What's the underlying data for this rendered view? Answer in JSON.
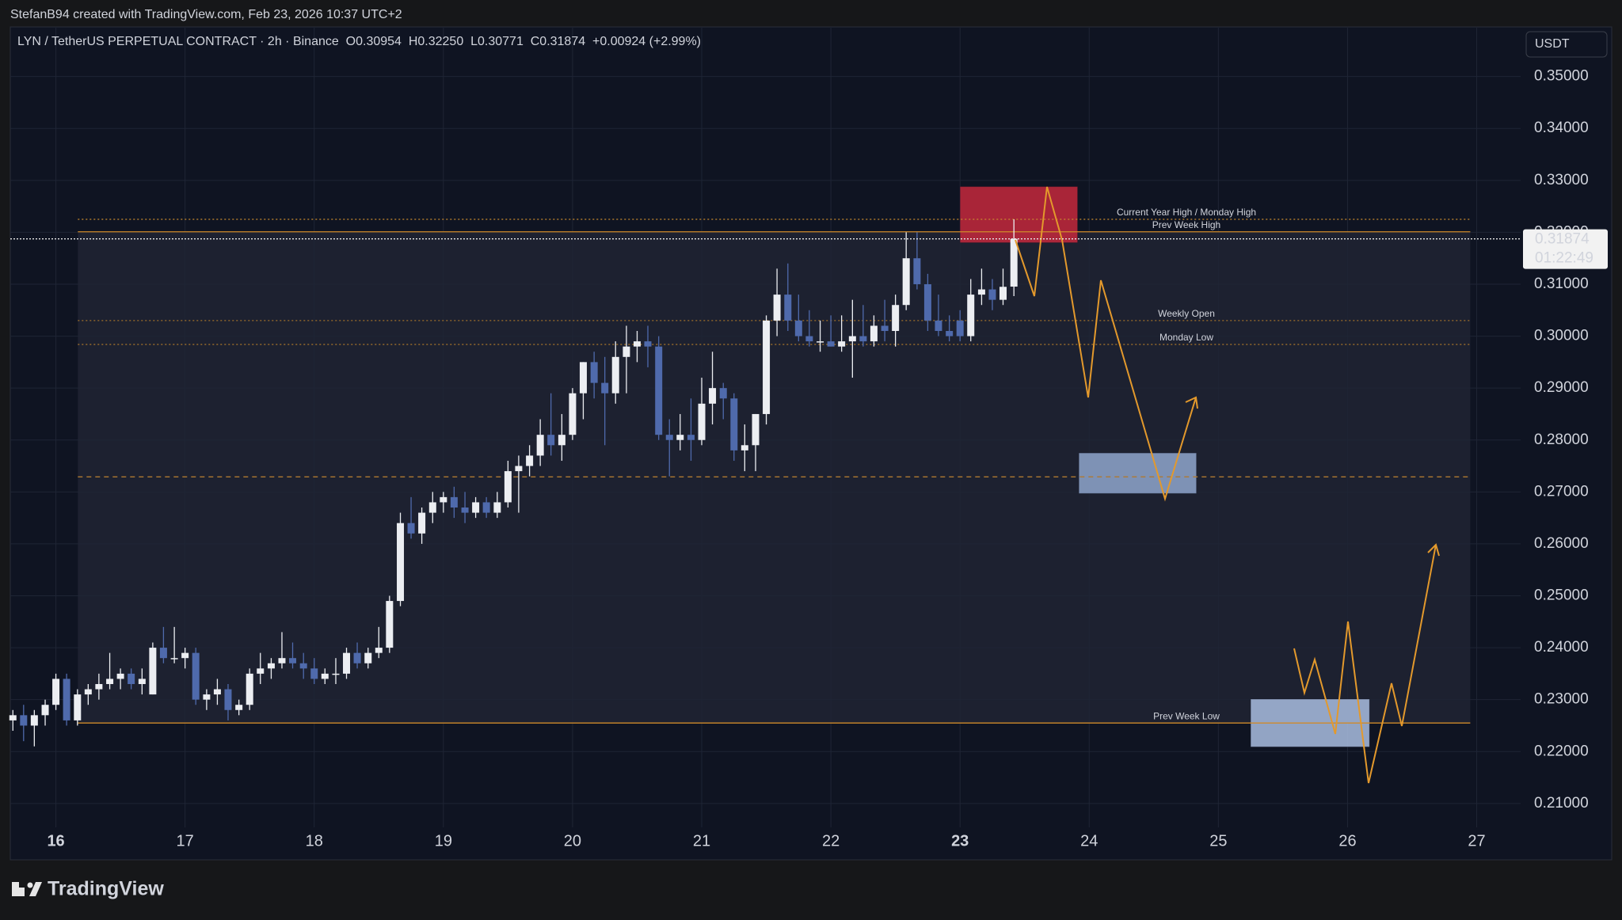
{
  "header": {
    "credit": "StefanB94 created with TradingView.com, Feb 23, 2026 10:37 UTC+2",
    "currency_button": "USDT",
    "brand": "TradingView"
  },
  "chart_data": {
    "type": "candlestick",
    "title": "LYN / TetherUS PERPETUAL CONTRACT · 2h · Binance  O0.30954  H0.32250  L0.30771  C0.31874  +0.00924 (+2.99%)",
    "x": [
      15.667,
      15.75,
      15.833,
      15.917,
      16,
      16.083,
      16.167,
      16.25,
      16.333,
      16.417,
      16.5,
      16.583,
      16.667,
      16.75,
      16.833,
      16.917,
      17,
      17.083,
      17.167,
      17.25,
      17.333,
      17.417,
      17.5,
      17.583,
      17.667,
      17.75,
      17.833,
      17.917,
      18,
      18.083,
      18.167,
      18.25,
      18.333,
      18.417,
      18.5,
      18.583,
      18.667,
      18.75,
      18.833,
      18.917,
      19,
      19.083,
      19.167,
      19.25,
      19.333,
      19.417,
      19.5,
      19.583,
      19.667,
      19.75,
      19.833,
      19.917,
      20,
      20.083,
      20.167,
      20.25,
      20.333,
      20.417,
      20.5,
      20.583,
      20.667,
      20.75,
      20.833,
      20.917,
      21,
      21.083,
      21.167,
      21.25,
      21.333,
      21.417,
      21.5,
      21.583,
      21.667,
      21.75,
      21.833,
      21.917,
      22,
      22.083,
      22.167,
      22.25,
      22.333,
      22.417,
      22.5,
      22.583,
      22.667,
      22.75,
      22.833,
      22.917,
      23,
      23.083,
      23.167,
      23.25,
      23.333,
      23.417
    ],
    "open": [
      0.226,
      0.227,
      0.225,
      0.227,
      0.229,
      0.234,
      0.226,
      0.231,
      0.232,
      0.233,
      0.234,
      0.235,
      0.233,
      0.231,
      0.24,
      0.238,
      0.238,
      0.239,
      0.23,
      0.231,
      0.232,
      0.228,
      0.229,
      0.235,
      0.236,
      0.237,
      0.238,
      0.237,
      0.236,
      0.234,
      0.235,
      0.235,
      0.239,
      0.237,
      0.239,
      0.24,
      0.249,
      0.264,
      0.262,
      0.266,
      0.268,
      0.269,
      0.267,
      0.266,
      0.268,
      0.266,
      0.268,
      0.274,
      0.275,
      0.277,
      0.281,
      0.279,
      0.281,
      0.289,
      0.295,
      0.291,
      0.289,
      0.296,
      0.298,
      0.299,
      0.298,
      0.281,
      0.28,
      0.281,
      0.28,
      0.287,
      0.29,
      0.288,
      0.278,
      0.279,
      0.285,
      0.303,
      0.308,
      0.303,
      0.3,
      0.299,
      0.299,
      0.298,
      0.299,
      0.3,
      0.299,
      0.302,
      0.301,
      0.306,
      0.315,
      0.31,
      0.303,
      0.301,
      0.303,
      0.3,
      0.308,
      0.309,
      0.307,
      0.30954
    ],
    "high": [
      0.228,
      0.229,
      0.228,
      0.23,
      0.235,
      0.235,
      0.232,
      0.233,
      0.235,
      0.239,
      0.236,
      0.236,
      0.236,
      0.241,
      0.244,
      0.244,
      0.24,
      0.24,
      0.232,
      0.234,
      0.233,
      0.23,
      0.236,
      0.239,
      0.238,
      0.243,
      0.241,
      0.239,
      0.238,
      0.236,
      0.238,
      0.24,
      0.241,
      0.24,
      0.244,
      0.25,
      0.266,
      0.269,
      0.267,
      0.27,
      0.27,
      0.271,
      0.27,
      0.269,
      0.269,
      0.27,
      0.276,
      0.277,
      0.279,
      0.284,
      0.289,
      0.285,
      0.29,
      0.295,
      0.297,
      0.296,
      0.299,
      0.302,
      0.301,
      0.302,
      0.3,
      0.284,
      0.285,
      0.288,
      0.292,
      0.297,
      0.291,
      0.289,
      0.283,
      0.285,
      0.304,
      0.313,
      0.314,
      0.308,
      0.305,
      0.303,
      0.304,
      0.304,
      0.307,
      0.306,
      0.304,
      0.307,
      0.308,
      0.32,
      0.32,
      0.312,
      0.308,
      0.304,
      0.305,
      0.311,
      0.313,
      0.311,
      0.313,
      0.3225
    ],
    "low": [
      0.224,
      0.222,
      0.221,
      0.225,
      0.228,
      0.225,
      0.225,
      0.229,
      0.23,
      0.232,
      0.232,
      0.232,
      0.231,
      0.231,
      0.237,
      0.237,
      0.236,
      0.229,
      0.228,
      0.229,
      0.226,
      0.227,
      0.228,
      0.233,
      0.234,
      0.236,
      0.236,
      0.234,
      0.233,
      0.233,
      0.233,
      0.234,
      0.236,
      0.236,
      0.238,
      0.239,
      0.248,
      0.261,
      0.26,
      0.264,
      0.266,
      0.265,
      0.264,
      0.265,
      0.265,
      0.265,
      0.267,
      0.266,
      0.273,
      0.275,
      0.277,
      0.276,
      0.28,
      0.284,
      0.288,
      0.279,
      0.287,
      0.289,
      0.295,
      0.294,
      0.28,
      0.273,
      0.278,
      0.276,
      0.279,
      0.283,
      0.284,
      0.276,
      0.274,
      0.274,
      0.283,
      0.3,
      0.301,
      0.299,
      0.298,
      0.297,
      0.298,
      0.297,
      0.292,
      0.298,
      0.298,
      0.299,
      0.298,
      0.305,
      0.309,
      0.301,
      0.3,
      0.299,
      0.299,
      0.299,
      0.306,
      0.305,
      0.306,
      0.30771
    ],
    "close": [
      0.227,
      0.225,
      0.227,
      0.229,
      0.234,
      0.226,
      0.231,
      0.232,
      0.233,
      0.234,
      0.235,
      0.233,
      0.234,
      0.24,
      0.238,
      0.238,
      0.239,
      0.23,
      0.231,
      0.232,
      0.228,
      0.229,
      0.235,
      0.236,
      0.237,
      0.238,
      0.237,
      0.236,
      0.234,
      0.235,
      0.235,
      0.239,
      0.237,
      0.239,
      0.24,
      0.249,
      0.264,
      0.262,
      0.266,
      0.268,
      0.269,
      0.267,
      0.266,
      0.268,
      0.266,
      0.268,
      0.274,
      0.275,
      0.277,
      0.281,
      0.279,
      0.281,
      0.289,
      0.295,
      0.291,
      0.289,
      0.296,
      0.298,
      0.299,
      0.298,
      0.281,
      0.28,
      0.281,
      0.28,
      0.287,
      0.29,
      0.288,
      0.278,
      0.279,
      0.285,
      0.303,
      0.308,
      0.303,
      0.3,
      0.299,
      0.299,
      0.298,
      0.299,
      0.3,
      0.299,
      0.302,
      0.301,
      0.306,
      0.315,
      0.31,
      0.303,
      0.301,
      0.3,
      0.3,
      0.308,
      0.309,
      0.307,
      0.3095,
      0.31874
    ],
    "up_color": "#eceef2",
    "down_color": "#4f6aac",
    "xlim": [
      15.647,
      27.34
    ],
    "xticks": [
      16,
      17,
      18,
      19,
      20,
      21,
      22,
      23,
      24,
      25,
      26,
      27
    ],
    "xticks_bold": [
      16,
      23
    ],
    "ylim": [
      0.2054,
      0.3594
    ],
    "yticks": [
      {
        "value": 0.21,
        "label": "0.21000"
      },
      {
        "value": 0.22,
        "label": "0.22000"
      },
      {
        "value": 0.23,
        "label": "0.23000"
      },
      {
        "value": 0.24,
        "label": "0.24000"
      },
      {
        "value": 0.25,
        "label": "0.25000"
      },
      {
        "value": 0.26,
        "label": "0.26000"
      },
      {
        "value": 0.27,
        "label": "0.27000"
      },
      {
        "value": 0.28,
        "label": "0.28000"
      },
      {
        "value": 0.29,
        "label": "0.29000"
      },
      {
        "value": 0.3,
        "label": "0.30000"
      },
      {
        "value": 0.31,
        "label": "0.31000"
      },
      {
        "value": 0.32,
        "label": "0.32000"
      },
      {
        "value": 0.33,
        "label": "0.33000"
      },
      {
        "value": 0.34,
        "label": "0.34000"
      },
      {
        "value": 0.35,
        "label": "0.35000"
      }
    ],
    "grid": true,
    "last_price": 0.31874,
    "countdown": "01:22:49",
    "range_box": {
      "x": [
        16.17,
        26.95
      ],
      "y": [
        0.2255,
        0.3201
      ],
      "color": "#1d2130"
    },
    "levels": [
      {
        "label": "Current Year High / Monday High",
        "value": 0.3225,
        "color": "#c98a2e",
        "dash": "2 3"
      },
      {
        "label": "Prev Week High",
        "value": 0.3201,
        "color": "#d08a2a",
        "dash": "none"
      },
      {
        "label": "Weekly Open",
        "value": 0.303,
        "color": "#a0702a",
        "dash": "2 3"
      },
      {
        "label": "Monday Low",
        "value": 0.2984,
        "color": "#a0702a",
        "dash": "2 3"
      },
      {
        "label": null,
        "value": 0.2729,
        "color": "#b07a30",
        "dash": "6 5"
      },
      {
        "label": "Prev Week Low",
        "value": 0.2255,
        "color": "#d08a2a",
        "dash": "none"
      }
    ],
    "zones": [
      {
        "x": [
          23.0,
          23.91
        ],
        "y": [
          0.318,
          0.3288
        ],
        "color": "#c4283c"
      },
      {
        "x": [
          23.92,
          24.83
        ],
        "y": [
          0.2697,
          0.2775
        ],
        "color": "#8fa6cc"
      },
      {
        "x": [
          25.25,
          26.17
        ],
        "y": [
          0.2209,
          0.2301
        ],
        "color": "#a9bde0"
      }
    ]
  }
}
